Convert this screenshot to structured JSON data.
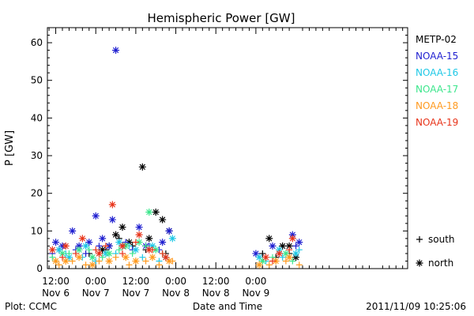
{
  "chart_data": {
    "type": "scatter",
    "title": "Hemispheric Power [GW]",
    "ylabel": "P [GW]",
    "xlabel": "Date and Time",
    "x_unit": "hours",
    "ylim": [
      0,
      64
    ],
    "xlim": [
      9.5,
      117.5
    ],
    "y_ticks": [
      0,
      10,
      20,
      30,
      40,
      50,
      60
    ],
    "x_ticks": [
      {
        "x": 12,
        "line1": "12:00",
        "line2": "Nov 6"
      },
      {
        "x": 24,
        "line1": "0:00",
        "line2": "Nov 7"
      },
      {
        "x": 36,
        "line1": "12:00",
        "line2": "Nov 7"
      },
      {
        "x": 48,
        "line1": "0:00",
        "line2": "Nov 8"
      },
      {
        "x": 60,
        "line1": "12:00",
        "line2": "Nov 8"
      },
      {
        "x": 72,
        "line1": "0:00",
        "line2": "Nov 9"
      }
    ],
    "grid": false,
    "legend_position": "right",
    "series": [
      {
        "name": "METP-02",
        "color": "#000000",
        "north": [
          [
            26,
            5
          ],
          [
            28,
            6
          ],
          [
            30,
            9
          ],
          [
            32,
            11
          ],
          [
            34,
            7
          ],
          [
            38,
            27
          ],
          [
            40,
            8
          ],
          [
            42,
            15
          ],
          [
            44,
            13
          ],
          [
            46,
            10
          ],
          [
            76,
            8
          ],
          [
            80,
            6
          ],
          [
            82,
            6
          ],
          [
            84,
            3
          ]
        ],
        "south": [
          [
            22,
            4
          ],
          [
            27,
            5
          ],
          [
            31,
            8
          ],
          [
            35,
            6
          ],
          [
            39,
            5
          ],
          [
            45,
            4
          ],
          [
            74,
            4
          ],
          [
            78,
            3
          ],
          [
            82,
            4
          ]
        ]
      },
      {
        "name": "NOAA-15",
        "color": "#1f1fd0",
        "north": [
          [
            12,
            7
          ],
          [
            14,
            6
          ],
          [
            17,
            10
          ],
          [
            19,
            6
          ],
          [
            22,
            7
          ],
          [
            24,
            14
          ],
          [
            26,
            8
          ],
          [
            28,
            6
          ],
          [
            29,
            13
          ],
          [
            30,
            58
          ],
          [
            32,
            6
          ],
          [
            37,
            11
          ],
          [
            39,
            6
          ],
          [
            44,
            7
          ],
          [
            46,
            10
          ],
          [
            72,
            4
          ],
          [
            77,
            6
          ],
          [
            83,
            9
          ],
          [
            85,
            7
          ]
        ],
        "south": [
          [
            11,
            4
          ],
          [
            13,
            5
          ],
          [
            18,
            5
          ],
          [
            21,
            4
          ],
          [
            25,
            6
          ],
          [
            33,
            7
          ],
          [
            35,
            5
          ],
          [
            40,
            6
          ],
          [
            43,
            5
          ],
          [
            79,
            4
          ],
          [
            84,
            6
          ]
        ]
      },
      {
        "name": "NOAA-16",
        "color": "#1fc8e6",
        "north": [
          [
            13,
            5
          ],
          [
            16,
            3
          ],
          [
            21,
            6
          ],
          [
            27,
            4
          ],
          [
            31,
            7
          ],
          [
            36,
            5
          ],
          [
            41,
            6
          ],
          [
            45,
            3
          ],
          [
            47,
            8
          ],
          [
            73,
            3
          ],
          [
            79,
            5
          ],
          [
            84,
            4
          ]
        ],
        "south": [
          [
            12,
            2
          ],
          [
            15,
            4
          ],
          [
            20,
            3
          ],
          [
            24,
            2
          ],
          [
            30,
            4
          ],
          [
            34,
            6
          ],
          [
            38,
            3
          ],
          [
            43,
            2
          ],
          [
            75,
            2
          ],
          [
            80,
            3
          ],
          [
            85,
            5
          ]
        ]
      },
      {
        "name": "NOAA-17",
        "color": "#3ce68c",
        "north": [
          [
            14,
            4
          ],
          [
            19,
            5
          ],
          [
            23,
            3
          ],
          [
            28,
            4
          ],
          [
            33,
            6
          ],
          [
            37,
            7
          ],
          [
            40,
            15
          ],
          [
            42,
            5
          ],
          [
            74,
            2
          ],
          [
            81,
            4
          ]
        ],
        "south": [
          [
            11,
            3
          ],
          [
            16,
            4
          ],
          [
            22,
            5
          ],
          [
            26,
            3
          ],
          [
            31,
            5
          ],
          [
            35,
            4
          ],
          [
            39,
            6
          ],
          [
            44,
            4
          ],
          [
            77,
            3
          ],
          [
            83,
            2
          ]
        ]
      },
      {
        "name": "NOAA-18",
        "color": "#ff9a1f",
        "north": [
          [
            12,
            2
          ],
          [
            15,
            2
          ],
          [
            19,
            3
          ],
          [
            23,
            1
          ],
          [
            28,
            2
          ],
          [
            33,
            3
          ],
          [
            36,
            2
          ],
          [
            41,
            3
          ],
          [
            46,
            2
          ],
          [
            73,
            1
          ],
          [
            78,
            2
          ],
          [
            82,
            3
          ]
        ],
        "south": [
          [
            13,
            1
          ],
          [
            17,
            2
          ],
          [
            21,
            1
          ],
          [
            25,
            2
          ],
          [
            30,
            3
          ],
          [
            34,
            1
          ],
          [
            39,
            2
          ],
          [
            43,
            1
          ],
          [
            47,
            2
          ],
          [
            76,
            1
          ],
          [
            81,
            2
          ],
          [
            85,
            1
          ]
        ]
      },
      {
        "name": "NOAA-19",
        "color": "#e8341a",
        "north": [
          [
            11,
            5
          ],
          [
            15,
            6
          ],
          [
            20,
            8
          ],
          [
            25,
            4
          ],
          [
            29,
            17
          ],
          [
            32,
            6
          ],
          [
            37,
            9
          ],
          [
            40,
            5
          ],
          [
            45,
            3
          ],
          [
            75,
            3
          ],
          [
            79,
            4
          ],
          [
            83,
            8
          ]
        ],
        "south": [
          [
            14,
            3
          ],
          [
            18,
            4
          ],
          [
            24,
            5
          ],
          [
            27,
            6
          ],
          [
            32,
            4
          ],
          [
            36,
            7
          ],
          [
            41,
            5
          ],
          [
            44,
            4
          ],
          [
            77,
            2
          ],
          [
            82,
            5
          ]
        ]
      }
    ],
    "marker_legend": [
      {
        "symbol": "+",
        "label": "south"
      },
      {
        "symbol": "*",
        "label": "north"
      }
    ]
  },
  "footer": {
    "left": "Plot: CCMC",
    "right": "2011/11/09 10:25:06"
  }
}
